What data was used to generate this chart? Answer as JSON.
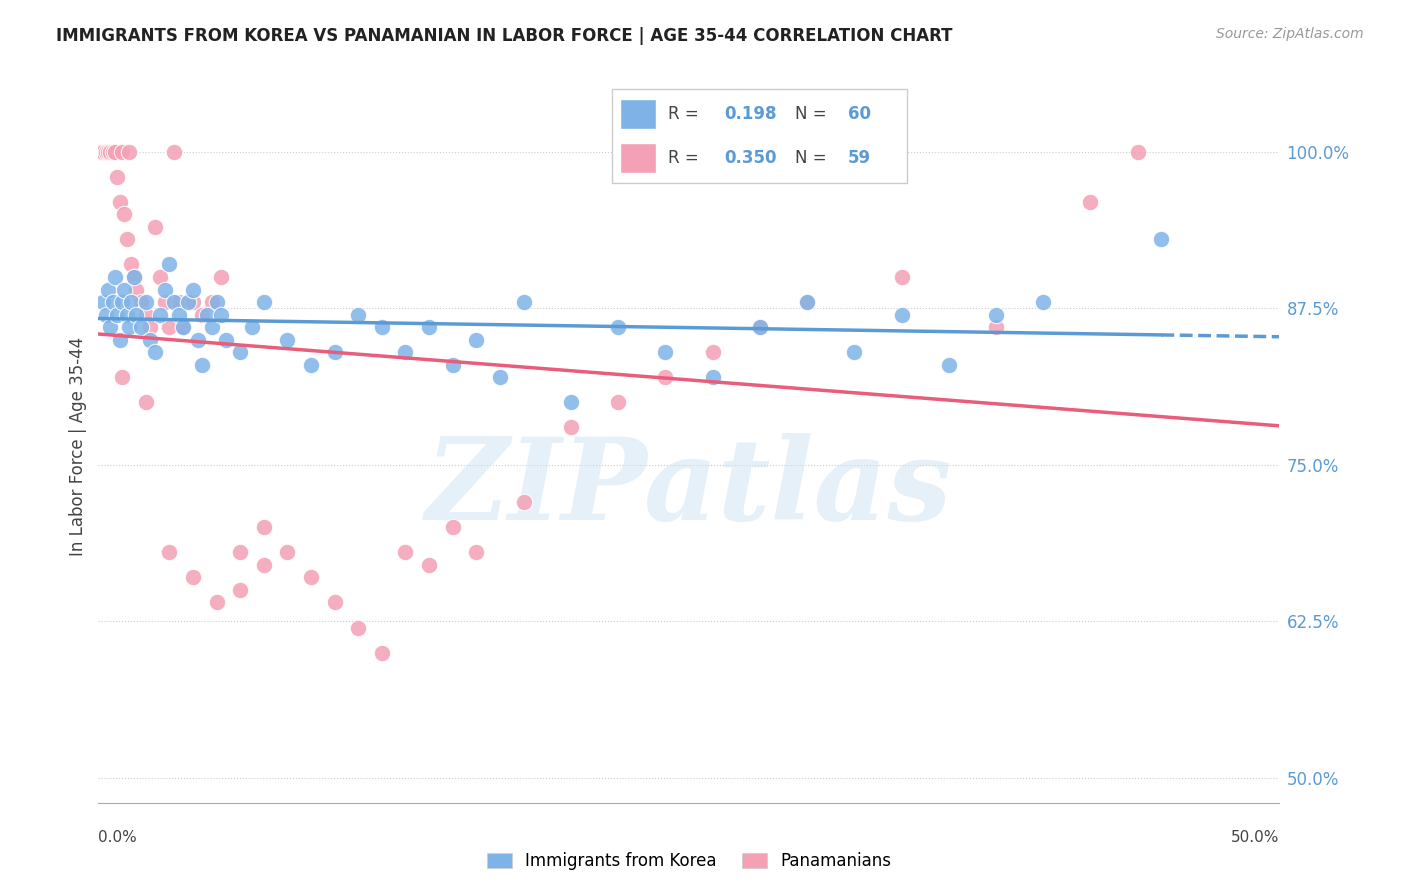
{
  "title": "IMMIGRANTS FROM KOREA VS PANAMANIAN IN LABOR FORCE | AGE 35-44 CORRELATION CHART",
  "source": "Source: ZipAtlas.com",
  "ylabel": "In Labor Force | Age 35-44",
  "right_yticks": [
    0.5,
    0.625,
    0.75,
    0.875,
    1.0
  ],
  "right_yticklabels": [
    "50.0%",
    "62.5%",
    "75.0%",
    "87.5%",
    "100.0%"
  ],
  "xlim": [
    0.0,
    0.5
  ],
  "ylim": [
    0.48,
    1.05
  ],
  "korea_R": 0.198,
  "korea_N": 60,
  "panama_R": 0.35,
  "panama_N": 59,
  "korea_color": "#7fb3e8",
  "panama_color": "#f4a0b5",
  "korea_line_color": "#5b9bd5",
  "panama_line_color": "#e85d7a",
  "watermark": "ZIPatlas",
  "korea_x": [
    0.002,
    0.003,
    0.004,
    0.005,
    0.006,
    0.007,
    0.008,
    0.009,
    0.01,
    0.011,
    0.012,
    0.013,
    0.014,
    0.015,
    0.016,
    0.018,
    0.02,
    0.022,
    0.024,
    0.026,
    0.028,
    0.03,
    0.032,
    0.034,
    0.036,
    0.038,
    0.04,
    0.042,
    0.044,
    0.046,
    0.048,
    0.05,
    0.052,
    0.054,
    0.06,
    0.065,
    0.07,
    0.08,
    0.09,
    0.1,
    0.11,
    0.12,
    0.13,
    0.14,
    0.15,
    0.16,
    0.17,
    0.18,
    0.2,
    0.22,
    0.24,
    0.26,
    0.28,
    0.3,
    0.32,
    0.34,
    0.36,
    0.38,
    0.4,
    0.45
  ],
  "korea_y": [
    0.88,
    0.87,
    0.89,
    0.86,
    0.88,
    0.9,
    0.87,
    0.85,
    0.88,
    0.89,
    0.87,
    0.86,
    0.88,
    0.9,
    0.87,
    0.86,
    0.88,
    0.85,
    0.84,
    0.87,
    0.89,
    0.91,
    0.88,
    0.87,
    0.86,
    0.88,
    0.89,
    0.85,
    0.83,
    0.87,
    0.86,
    0.88,
    0.87,
    0.85,
    0.84,
    0.86,
    0.88,
    0.85,
    0.83,
    0.84,
    0.87,
    0.86,
    0.84,
    0.86,
    0.83,
    0.85,
    0.82,
    0.88,
    0.8,
    0.86,
    0.84,
    0.82,
    0.86,
    0.88,
    0.84,
    0.87,
    0.83,
    0.87,
    0.88,
    0.93
  ],
  "panama_x": [
    0.001,
    0.002,
    0.003,
    0.004,
    0.005,
    0.006,
    0.007,
    0.008,
    0.009,
    0.01,
    0.011,
    0.012,
    0.013,
    0.014,
    0.015,
    0.016,
    0.018,
    0.02,
    0.022,
    0.024,
    0.026,
    0.028,
    0.03,
    0.032,
    0.034,
    0.036,
    0.04,
    0.044,
    0.048,
    0.052,
    0.06,
    0.07,
    0.08,
    0.09,
    0.1,
    0.11,
    0.12,
    0.13,
    0.14,
    0.15,
    0.16,
    0.18,
    0.2,
    0.22,
    0.24,
    0.26,
    0.28,
    0.3,
    0.34,
    0.38,
    0.42,
    0.01,
    0.02,
    0.03,
    0.04,
    0.05,
    0.06,
    0.07,
    0.44
  ],
  "panama_y": [
    1.0,
    1.0,
    1.0,
    1.0,
    1.0,
    1.0,
    1.0,
    0.98,
    0.96,
    1.0,
    0.95,
    0.93,
    1.0,
    0.91,
    0.9,
    0.89,
    0.88,
    0.87,
    0.86,
    0.94,
    0.9,
    0.88,
    0.86,
    1.0,
    0.88,
    0.86,
    0.88,
    0.87,
    0.88,
    0.9,
    0.68,
    0.7,
    0.68,
    0.66,
    0.64,
    0.62,
    0.6,
    0.68,
    0.67,
    0.7,
    0.68,
    0.72,
    0.78,
    0.8,
    0.82,
    0.84,
    0.86,
    0.88,
    0.9,
    0.86,
    0.96,
    0.82,
    0.8,
    0.68,
    0.66,
    0.64,
    0.65,
    0.67,
    1.0
  ]
}
